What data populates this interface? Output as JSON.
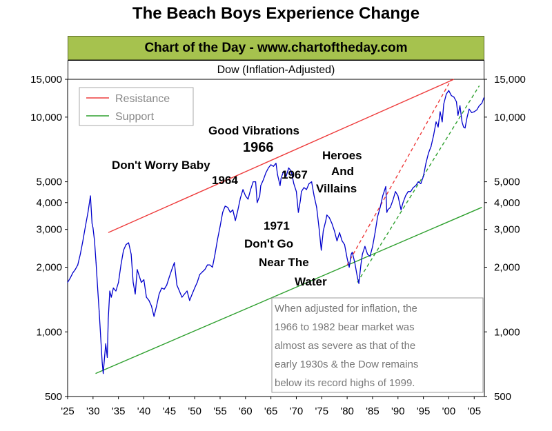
{
  "title": "The Beach Boys Experience Change",
  "banner": "Chart of the Day - www.chartoftheday.com",
  "chart_data": {
    "type": "line",
    "title": "Dow (Inflation-Adjusted)",
    "yscale": "log",
    "ylim": [
      500,
      15000
    ],
    "xlim": [
      1925,
      2007
    ],
    "yticks": [
      {
        "value": 15000,
        "label": "15,000"
      },
      {
        "value": 10000,
        "label": "10,000"
      },
      {
        "value": 5000,
        "label": "5,000"
      },
      {
        "value": 4000,
        "label": "4,000"
      },
      {
        "value": 3000,
        "label": "3,000"
      },
      {
        "value": 2000,
        "label": "2,000"
      },
      {
        "value": 1000,
        "label": "1,000"
      },
      {
        "value": 500,
        "label": "500"
      }
    ],
    "xticks": [
      {
        "value": 1925,
        "label": "'25"
      },
      {
        "value": 1930,
        "label": "'30"
      },
      {
        "value": 1935,
        "label": "'35"
      },
      {
        "value": 1940,
        "label": "'40"
      },
      {
        "value": 1945,
        "label": "'45"
      },
      {
        "value": 1950,
        "label": "'50"
      },
      {
        "value": 1955,
        "label": "'55"
      },
      {
        "value": 1960,
        "label": "'60"
      },
      {
        "value": 1965,
        "label": "'65"
      },
      {
        "value": 1970,
        "label": "'70"
      },
      {
        "value": 1975,
        "label": "'75"
      },
      {
        "value": 1980,
        "label": "'80"
      },
      {
        "value": 1985,
        "label": "'85"
      },
      {
        "value": 1990,
        "label": "'90"
      },
      {
        "value": 1995,
        "label": "'95"
      },
      {
        "value": 2000,
        "label": "'00"
      },
      {
        "value": 2005,
        "label": "'05"
      }
    ],
    "series": [
      {
        "color": "#0000cc",
        "points": [
          [
            1925.0,
            1700
          ],
          [
            1925.5,
            1780
          ],
          [
            1926.0,
            1880
          ],
          [
            1926.5,
            1950
          ],
          [
            1927.0,
            2050
          ],
          [
            1927.5,
            2300
          ],
          [
            1928.0,
            2650
          ],
          [
            1928.5,
            3100
          ],
          [
            1929.0,
            3600
          ],
          [
            1929.5,
            4300
          ],
          [
            1929.8,
            3200
          ],
          [
            1930.0,
            3050
          ],
          [
            1930.3,
            2650
          ],
          [
            1930.6,
            2100
          ],
          [
            1930.9,
            1600
          ],
          [
            1931.2,
            1250
          ],
          [
            1931.5,
            950
          ],
          [
            1931.8,
            720
          ],
          [
            1932.0,
            640
          ],
          [
            1932.3,
            780
          ],
          [
            1932.5,
            880
          ],
          [
            1932.8,
            760
          ],
          [
            1933.0,
            1150
          ],
          [
            1933.3,
            1550
          ],
          [
            1933.6,
            1450
          ],
          [
            1934.0,
            1600
          ],
          [
            1934.5,
            1550
          ],
          [
            1935.0,
            1700
          ],
          [
            1935.5,
            2050
          ],
          [
            1936.0,
            2400
          ],
          [
            1936.5,
            2550
          ],
          [
            1937.0,
            2600
          ],
          [
            1937.5,
            2300
          ],
          [
            1937.9,
            1700
          ],
          [
            1938.3,
            1500
          ],
          [
            1938.7,
            1950
          ],
          [
            1939.0,
            1850
          ],
          [
            1939.5,
            1700
          ],
          [
            1940.0,
            1750
          ],
          [
            1940.5,
            1450
          ],
          [
            1941.0,
            1400
          ],
          [
            1941.5,
            1320
          ],
          [
            1942.0,
            1180
          ],
          [
            1942.5,
            1320
          ],
          [
            1943.0,
            1500
          ],
          [
            1943.5,
            1600
          ],
          [
            1944.0,
            1580
          ],
          [
            1944.5,
            1650
          ],
          [
            1945.0,
            1800
          ],
          [
            1945.5,
            1950
          ],
          [
            1946.0,
            2100
          ],
          [
            1946.5,
            1650
          ],
          [
            1947.0,
            1550
          ],
          [
            1947.5,
            1450
          ],
          [
            1948.0,
            1500
          ],
          [
            1948.5,
            1550
          ],
          [
            1949.0,
            1400
          ],
          [
            1949.5,
            1500
          ],
          [
            1950.0,
            1600
          ],
          [
            1950.5,
            1700
          ],
          [
            1951.0,
            1850
          ],
          [
            1951.5,
            1900
          ],
          [
            1952.0,
            1950
          ],
          [
            1952.5,
            2050
          ],
          [
            1953.0,
            2050
          ],
          [
            1953.5,
            2000
          ],
          [
            1954.0,
            2300
          ],
          [
            1954.5,
            2700
          ],
          [
            1955.0,
            3100
          ],
          [
            1955.5,
            3600
          ],
          [
            1956.0,
            3850
          ],
          [
            1956.5,
            3800
          ],
          [
            1957.0,
            3600
          ],
          [
            1957.5,
            3700
          ],
          [
            1958.0,
            3300
          ],
          [
            1958.5,
            3700
          ],
          [
            1959.0,
            4200
          ],
          [
            1959.5,
            4600
          ],
          [
            1960.0,
            4300
          ],
          [
            1960.5,
            4150
          ],
          [
            1961.0,
            4600
          ],
          [
            1961.5,
            5000
          ],
          [
            1962.0,
            5000
          ],
          [
            1962.3,
            4000
          ],
          [
            1962.8,
            4300
          ],
          [
            1963.0,
            4800
          ],
          [
            1963.5,
            5100
          ],
          [
            1964.0,
            5500
          ],
          [
            1964.5,
            5800
          ],
          [
            1965.0,
            6000
          ],
          [
            1965.5,
            5900
          ],
          [
            1966.0,
            6100
          ],
          [
            1966.3,
            5400
          ],
          [
            1966.8,
            4800
          ],
          [
            1967.0,
            5200
          ],
          [
            1967.5,
            5600
          ],
          [
            1968.0,
            5300
          ],
          [
            1968.5,
            5800
          ],
          [
            1969.0,
            5600
          ],
          [
            1969.5,
            4900
          ],
          [
            1970.0,
            4500
          ],
          [
            1970.4,
            3600
          ],
          [
            1970.8,
            4100
          ],
          [
            1971.0,
            4500
          ],
          [
            1971.5,
            4700
          ],
          [
            1972.0,
            4600
          ],
          [
            1972.5,
            4900
          ],
          [
            1973.0,
            5000
          ],
          [
            1973.5,
            4300
          ],
          [
            1974.0,
            3800
          ],
          [
            1974.5,
            3000
          ],
          [
            1974.9,
            2400
          ],
          [
            1975.3,
            2950
          ],
          [
            1975.8,
            3300
          ],
          [
            1976.0,
            3500
          ],
          [
            1976.5,
            3400
          ],
          [
            1977.0,
            3200
          ],
          [
            1977.5,
            2950
          ],
          [
            1978.0,
            2650
          ],
          [
            1978.5,
            2900
          ],
          [
            1979.0,
            2650
          ],
          [
            1979.5,
            2550
          ],
          [
            1980.0,
            2200
          ],
          [
            1980.4,
            2000
          ],
          [
            1980.8,
            2300
          ],
          [
            1981.0,
            2350
          ],
          [
            1981.5,
            2100
          ],
          [
            1982.0,
            1800
          ],
          [
            1982.3,
            1680
          ],
          [
            1982.7,
            2050
          ],
          [
            1983.0,
            2300
          ],
          [
            1983.5,
            2500
          ],
          [
            1984.0,
            2300
          ],
          [
            1984.5,
            2250
          ],
          [
            1985.0,
            2500
          ],
          [
            1985.5,
            2900
          ],
          [
            1986.0,
            3450
          ],
          [
            1986.5,
            3800
          ],
          [
            1987.0,
            4300
          ],
          [
            1987.6,
            4750
          ],
          [
            1987.8,
            3600
          ],
          [
            1988.0,
            3700
          ],
          [
            1988.5,
            3800
          ],
          [
            1989.0,
            4100
          ],
          [
            1989.5,
            4500
          ],
          [
            1990.0,
            4300
          ],
          [
            1990.6,
            3700
          ],
          [
            1991.0,
            4000
          ],
          [
            1991.5,
            4300
          ],
          [
            1992.0,
            4500
          ],
          [
            1992.5,
            4500
          ],
          [
            1993.0,
            4700
          ],
          [
            1993.5,
            4800
          ],
          [
            1994.0,
            5000
          ],
          [
            1994.5,
            4900
          ],
          [
            1995.0,
            5300
          ],
          [
            1995.5,
            6100
          ],
          [
            1996.0,
            6800
          ],
          [
            1996.5,
            7300
          ],
          [
            1997.0,
            8200
          ],
          [
            1997.5,
            9500
          ],
          [
            1997.9,
            9000
          ],
          [
            1998.3,
            10600
          ],
          [
            1998.7,
            9500
          ],
          [
            1999.0,
            11500
          ],
          [
            1999.5,
            12800
          ],
          [
            2000.0,
            13300
          ],
          [
            2000.5,
            12600
          ],
          [
            2001.0,
            12400
          ],
          [
            2001.5,
            11800
          ],
          [
            2001.8,
            10200
          ],
          [
            2002.2,
            11300
          ],
          [
            2002.6,
            9500
          ],
          [
            2002.9,
            9000
          ],
          [
            2003.2,
            8900
          ],
          [
            2003.6,
            10000
          ],
          [
            2004.0,
            10900
          ],
          [
            2004.5,
            10500
          ],
          [
            2005.0,
            10600
          ],
          [
            2005.5,
            10800
          ],
          [
            2006.0,
            11300
          ],
          [
            2006.5,
            11600
          ],
          [
            2006.9,
            12300
          ]
        ]
      }
    ],
    "trendlines": [
      {
        "name": "Resistance",
        "color": "#ee3b3b",
        "style": "solid",
        "points": [
          [
            1933,
            2900
          ],
          [
            2001,
            15000
          ]
        ]
      },
      {
        "name": "Support",
        "color": "#2ea02e",
        "style": "solid",
        "points": [
          [
            1930.5,
            640
          ],
          [
            2006.5,
            3800
          ]
        ]
      },
      {
        "color": "#ee3b3b",
        "style": "dashed",
        "points": [
          [
            1980,
            2050
          ],
          [
            2000.5,
            15000
          ]
        ]
      },
      {
        "color": "#2ea02e",
        "style": "dashed",
        "points": [
          [
            1982,
            1700
          ],
          [
            2006,
            14000
          ]
        ]
      }
    ],
    "legend": [
      {
        "label": "Resistance",
        "color": "#ee3b3b"
      },
      {
        "label": "Support",
        "color": "#2ea02e"
      }
    ],
    "annotations": [
      {
        "text": "Good Vibrations",
        "style": "normal"
      },
      {
        "text": "1966",
        "style": "big"
      },
      {
        "text": "Don't Worry Baby",
        "style": "normal"
      },
      {
        "text": "1964",
        "style": "normal"
      },
      {
        "text": "1967",
        "style": "normal"
      },
      {
        "text": "Heroes",
        "style": "normal"
      },
      {
        "text": "And",
        "style": "normal"
      },
      {
        "text": "Villains",
        "style": "normal"
      },
      {
        "text": "1971",
        "style": "normal"
      },
      {
        "text": "Don't Go",
        "style": "normal"
      },
      {
        "text": "Near The",
        "style": "normal"
      },
      {
        "text": "Water",
        "style": "normal"
      }
    ],
    "note": [
      "When adjusted for inflation, the",
      "1966 to 1982 bear market was",
      "almost as severe as that of the",
      "early 1930s & the Dow remains",
      "below its record highs of 1999."
    ]
  }
}
